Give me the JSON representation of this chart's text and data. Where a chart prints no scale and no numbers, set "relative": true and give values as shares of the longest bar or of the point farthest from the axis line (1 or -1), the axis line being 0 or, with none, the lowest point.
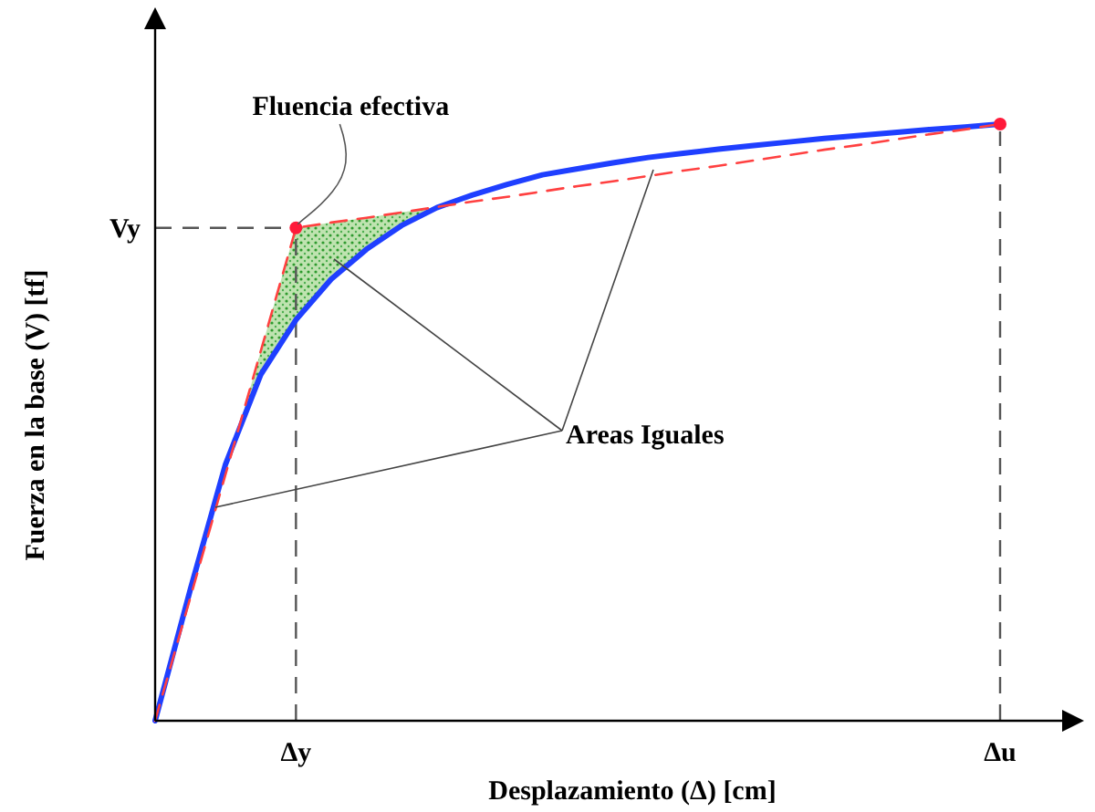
{
  "chart_data": {
    "type": "line",
    "relative": true,
    "xlabel": "Desplazamiento (Δ) [cm]",
    "ylabel": "Fuerza en la base (V) [tf]",
    "categories": [
      null,
      null,
      null,
      null,
      "Δy",
      null,
      null,
      null,
      null,
      null,
      null,
      null,
      null,
      null,
      null,
      null,
      null,
      null,
      null,
      null,
      null,
      null,
      null,
      null,
      "Δu"
    ],
    "series": [
      {
        "color": "#1f3fff",
        "values": [
          0,
          0.22,
          0.43,
          0.58,
          0.672,
          0.74,
          0.79,
          0.83,
          0.86,
          0.881,
          0.899,
          0.915,
          0.925,
          0.935,
          0.944,
          0.951,
          0.958,
          0.964,
          0.97,
          0.976,
          0.981,
          0.986,
          0.991,
          0.995,
          1
        ]
      },
      {
        "line_style": "dashed",
        "color": "#ff4040",
        "values": [
          0,
          0.2065,
          0.413,
          0.6195,
          0.826,
          0.835,
          0.843,
          0.852,
          0.861,
          0.87,
          0.878,
          0.887,
          0.896,
          0.904,
          0.913,
          0.922,
          0.93,
          0.939,
          0.948,
          0.957,
          0.965,
          0.974,
          0.983,
          0.991,
          1
        ]
      },
      {
        "type": "scatter",
        "marker": "circle",
        "color": "#ff1a3a",
        "x": [
          "Δy",
          "Δu"
        ],
        "values": [
          0.826,
          1
        ]
      }
    ],
    "ref_lines": [
      {
        "axis": "x",
        "value": "Δy",
        "color": "#555555",
        "line_style": "dashed"
      },
      {
        "axis": "x",
        "value": "Δu",
        "color": "#555555",
        "line_style": "dashed"
      },
      {
        "axis": "y",
        "value": 0.826,
        "label": "Vy",
        "color": "#555555",
        "line_style": "dashed"
      }
    ],
    "annotations": [
      {
        "text": "Fluencia efectiva",
        "x": "Δy",
        "y": 0.826
      },
      "Areas Iguales"
    ]
  }
}
